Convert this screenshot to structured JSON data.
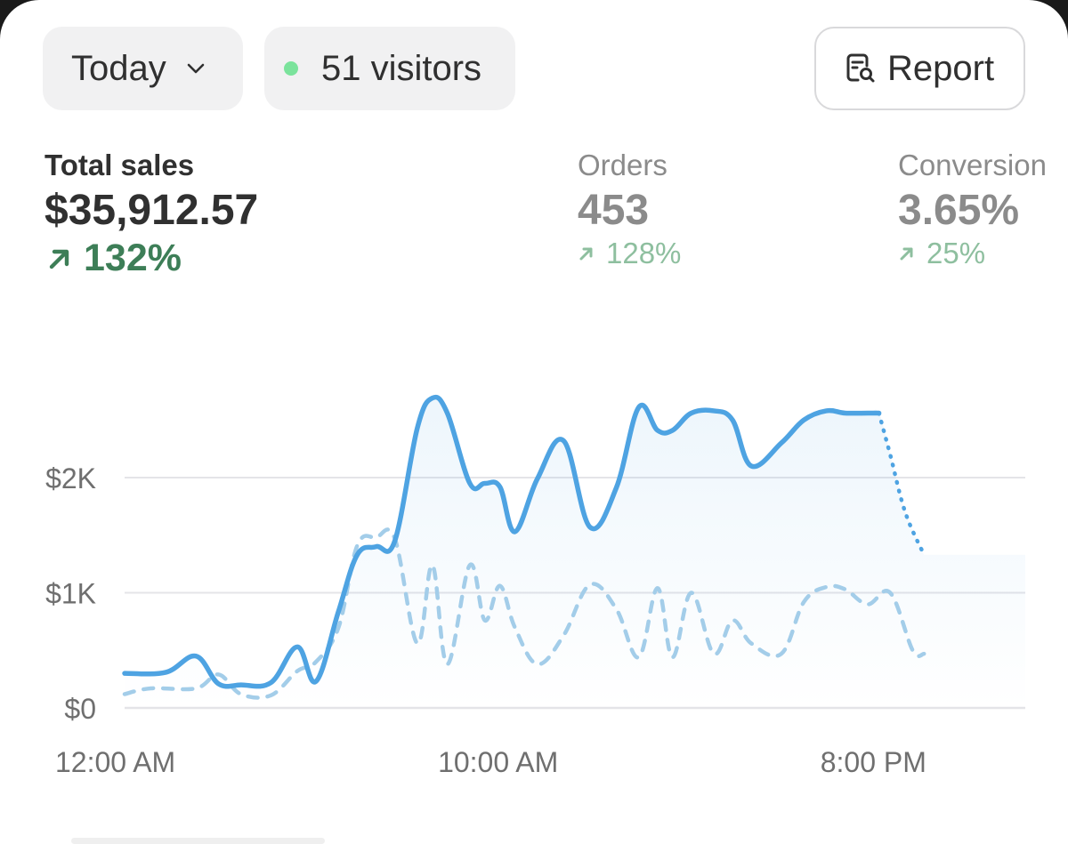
{
  "header": {
    "date_filter": {
      "label": "Today",
      "icon": "chevron-down-icon"
    },
    "visitors": {
      "label": "51 visitors",
      "status_color": "#7be39c"
    },
    "report_button": {
      "label": "Report",
      "icon": "report-search-icon"
    }
  },
  "metrics": [
    {
      "label": "Total sales",
      "value": "$35,912.57",
      "delta": "132%",
      "trend": "up",
      "selected": true
    },
    {
      "label": "Orders",
      "value": "453",
      "delta": "128%",
      "trend": "up",
      "selected": false
    },
    {
      "label": "Conversion",
      "value": "3.65%",
      "delta": "25%",
      "trend": "up",
      "selected": false
    }
  ],
  "colors": {
    "primary_line": "#4ea3e2",
    "comparison_line": "#a3cde9",
    "trend_positive": "#3d7e57",
    "trend_positive_muted": "#8ebf9f",
    "gridline": "#e4e4e8"
  },
  "chart_data": {
    "type": "line",
    "x_axis": {
      "type": "time",
      "range_hours": [
        0,
        24
      ],
      "tick_labels": [
        "12:00 AM",
        "10:00 AM",
        "8:00 PM"
      ],
      "tick_hours": [
        0,
        10,
        20
      ]
    },
    "y_axis": {
      "range": [
        0,
        2700
      ],
      "tick_labels": [
        "$0",
        "$1K",
        "$2K"
      ],
      "tick_values": [
        0,
        1000,
        2000
      ]
    },
    "grid": true,
    "series": [
      {
        "role": "primary",
        "style": "solid",
        "x": [
          0,
          1.1,
          1.9,
          2.5,
          3.1,
          3.9,
          4.6,
          5.1,
          5.7,
          6.2,
          6.7,
          7.2,
          7.8,
          8.2,
          8.6,
          9.2,
          9.6,
          10.0,
          10.4,
          11.0,
          11.7,
          12.4,
          13.1,
          13.7,
          14.2,
          14.6,
          15.1,
          15.7,
          16.2,
          16.7,
          17.5,
          18.1,
          18.7,
          19.2,
          19.8,
          20.1
        ],
        "values": [
          300,
          310,
          450,
          210,
          200,
          220,
          530,
          230,
          840,
          1330,
          1400,
          1450,
          2430,
          2690,
          2560,
          1950,
          1950,
          1920,
          1530,
          1990,
          2320,
          1570,
          1910,
          2610,
          2410,
          2410,
          2560,
          2580,
          2500,
          2100,
          2300,
          2500,
          2580,
          2560,
          2560,
          2560
        ]
      },
      {
        "role": "primary-incomplete",
        "style": "dotted",
        "x": [
          20.1,
          20.4,
          20.8,
          21.3
        ],
        "values": [
          2560,
          2200,
          1700,
          1330
        ]
      },
      {
        "role": "comparison",
        "style": "dashed",
        "x": [
          0,
          0.7,
          1.9,
          2.5,
          3.1,
          3.9,
          4.6,
          5.1,
          5.7,
          6.2,
          6.7,
          7.2,
          7.8,
          8.2,
          8.6,
          9.2,
          9.6,
          10.0,
          10.4,
          11.0,
          11.7,
          12.4,
          13.1,
          13.7,
          14.2,
          14.6,
          15.1,
          15.7,
          16.2,
          16.7,
          17.5,
          18.1,
          18.7,
          19.2,
          19.8,
          20.4,
          21.0,
          21.3
        ],
        "values": [
          120,
          170,
          170,
          290,
          120,
          110,
          320,
          400,
          700,
          1410,
          1480,
          1470,
          560,
          1240,
          380,
          1240,
          760,
          1060,
          700,
          380,
          630,
          1070,
          860,
          440,
          1040,
          440,
          1000,
          470,
          760,
          560,
          470,
          920,
          1050,
          1030,
          900,
          1000,
          500,
          470
        ]
      }
    ]
  }
}
